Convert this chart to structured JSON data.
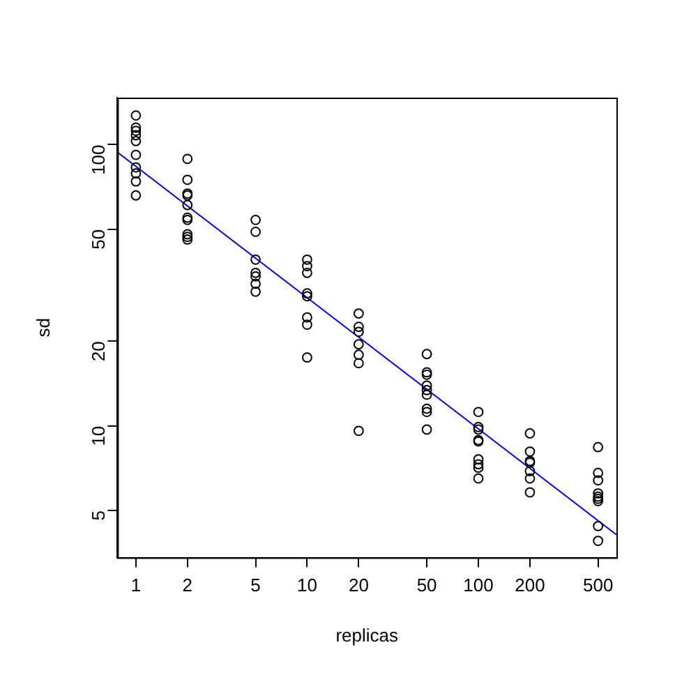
{
  "chart_data": {
    "type": "scatter",
    "xlabel": "replicas",
    "ylabel": "sd",
    "log": "xy",
    "grid": false,
    "legend": false,
    "marker": "circle",
    "xlim": [
      0.78,
      640
    ],
    "ylim": [
      3.4,
      147
    ],
    "xticks": [
      1,
      2,
      5,
      10,
      20,
      50,
      100,
      200,
      500
    ],
    "yticks": [
      5,
      10,
      20,
      50,
      100
    ],
    "series": [
      {
        "color": "#000000",
        "x": [
          1,
          1,
          1,
          1,
          1,
          1,
          1,
          1,
          1,
          1,
          2,
          2,
          2,
          2,
          2,
          2,
          2,
          2,
          2,
          2,
          5,
          5,
          5,
          5,
          5,
          5,
          5,
          10,
          10,
          10,
          10,
          10,
          10,
          10,
          10,
          20,
          20,
          20,
          20,
          20,
          20,
          20,
          50,
          50,
          50,
          50,
          50,
          50,
          50,
          50,
          50,
          100,
          100,
          100,
          100,
          100,
          100,
          100,
          100,
          100,
          200,
          200,
          200,
          200,
          200,
          200,
          200,
          500,
          500,
          500,
          500,
          500,
          500,
          500,
          500,
          500
        ],
        "values": [
          127,
          115,
          112,
          108,
          103,
          92,
          83,
          79,
          74,
          66,
          89,
          75,
          67,
          66,
          61,
          55,
          54,
          48,
          47,
          46,
          54,
          49,
          39,
          35,
          34,
          32,
          30,
          39,
          37,
          35,
          29.6,
          28.9,
          24.3,
          22.9,
          17.5,
          25.1,
          22.5,
          21.6,
          19.5,
          17.9,
          16.7,
          9.6,
          18,
          15.5,
          15.2,
          13.9,
          13.4,
          12.9,
          11.5,
          11.2,
          9.7,
          11.2,
          9.9,
          9.7,
          8.9,
          8.8,
          7.6,
          7.3,
          7.1,
          6.5,
          9.4,
          8.1,
          7.5,
          7.4,
          6.9,
          6.5,
          5.8,
          8.4,
          6.8,
          6.4,
          5.75,
          5.6,
          5.5,
          5.4,
          4.4,
          3.9
        ]
      },
      {
        "type": "line",
        "color": "#0000ff",
        "marker": "none",
        "line_style": "solid",
        "x": [
          0.78,
          640
        ],
        "values": [
          94,
          4.1
        ]
      }
    ]
  }
}
